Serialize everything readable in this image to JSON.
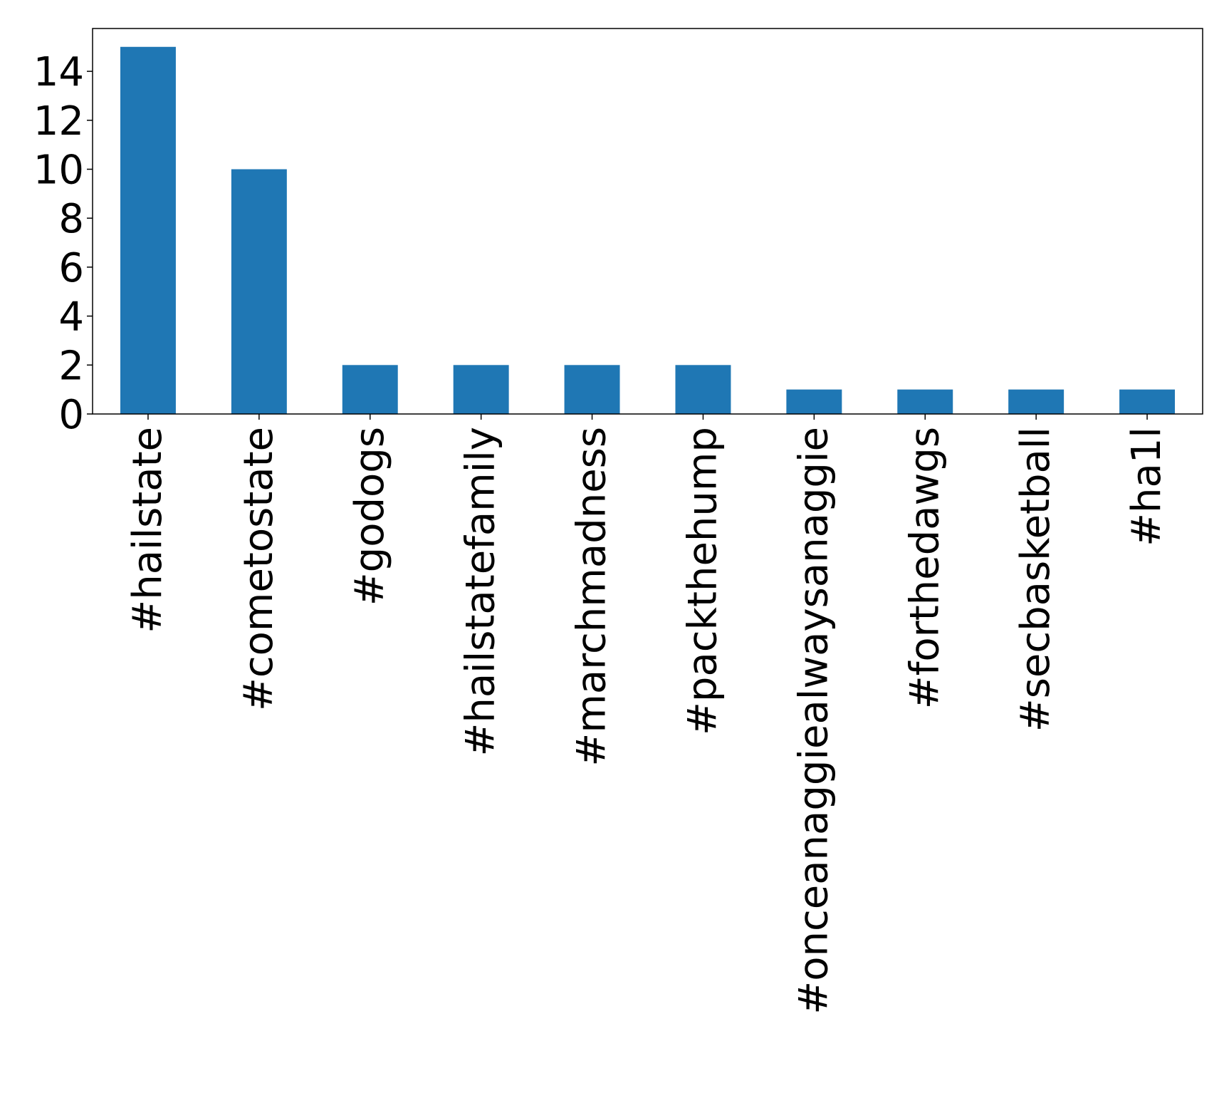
{
  "chart_data": {
    "type": "bar",
    "categories": [
      "#hailstate",
      "#cometostate",
      "#godogs",
      "#hailstatefamily",
      "#marchmadness",
      "#packthehump",
      "#onceanaggiealwaysanaggie",
      "#forthedawgs",
      "#secbasketball",
      "#ha1l"
    ],
    "values": [
      15,
      10,
      2,
      2,
      2,
      2,
      1,
      1,
      1,
      1
    ],
    "title": "",
    "xlabel": "",
    "ylabel": "",
    "ylim": [
      0,
      15.75
    ],
    "yticks": [
      0,
      2,
      4,
      6,
      8,
      10,
      12,
      14
    ],
    "grid": false,
    "legend": "none",
    "bar_color": "#1f77b4"
  }
}
